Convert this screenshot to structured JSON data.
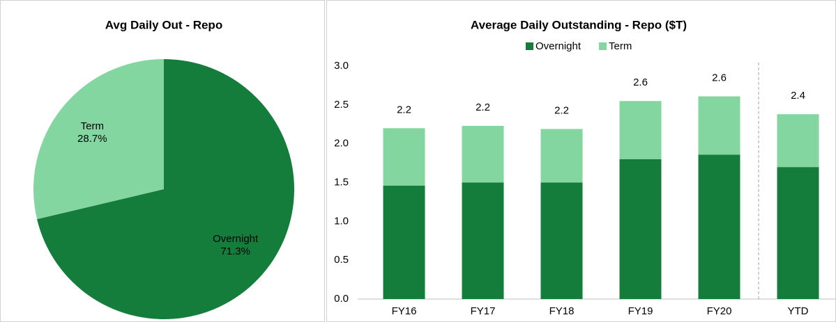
{
  "chart_data": [
    {
      "type": "pie",
      "title": "Avg Daily Out - Repo",
      "categories": [
        "Overnight",
        "Term"
      ],
      "values": [
        71.3,
        28.7
      ],
      "value_labels": [
        "71.3%",
        "28.7%"
      ],
      "colors": [
        "#147d3c",
        "#84d6a0"
      ]
    },
    {
      "type": "stacked_bar",
      "title": "Average Daily Outstanding - Repo ($T)",
      "categories": [
        "FY16",
        "FY17",
        "FY18",
        "FY19",
        "FY20",
        "YTD"
      ],
      "series": [
        {
          "name": "Overnight",
          "color": "#147d3c",
          "values": [
            1.46,
            1.5,
            1.5,
            1.8,
            1.86,
            1.7
          ]
        },
        {
          "name": "Term",
          "color": "#84d6a0",
          "values": [
            0.74,
            0.73,
            0.69,
            0.75,
            0.75,
            0.68
          ]
        }
      ],
      "totals": [
        2.2,
        2.23,
        2.19,
        2.55,
        2.61,
        2.38
      ],
      "total_labels": [
        "2.2",
        "2.2",
        "2.2",
        "2.6",
        "2.6",
        "2.4"
      ],
      "ylim": [
        0,
        3
      ],
      "yticks": [
        {
          "value": 0,
          "label": "0.0"
        },
        0.5,
        {
          "value": 1,
          "label": "1.0"
        },
        1.5,
        {
          "value": 2,
          "label": "2.0"
        },
        2.5,
        {
          "value": 3,
          "label": "3.0"
        }
      ],
      "legend": "top"
    }
  ]
}
